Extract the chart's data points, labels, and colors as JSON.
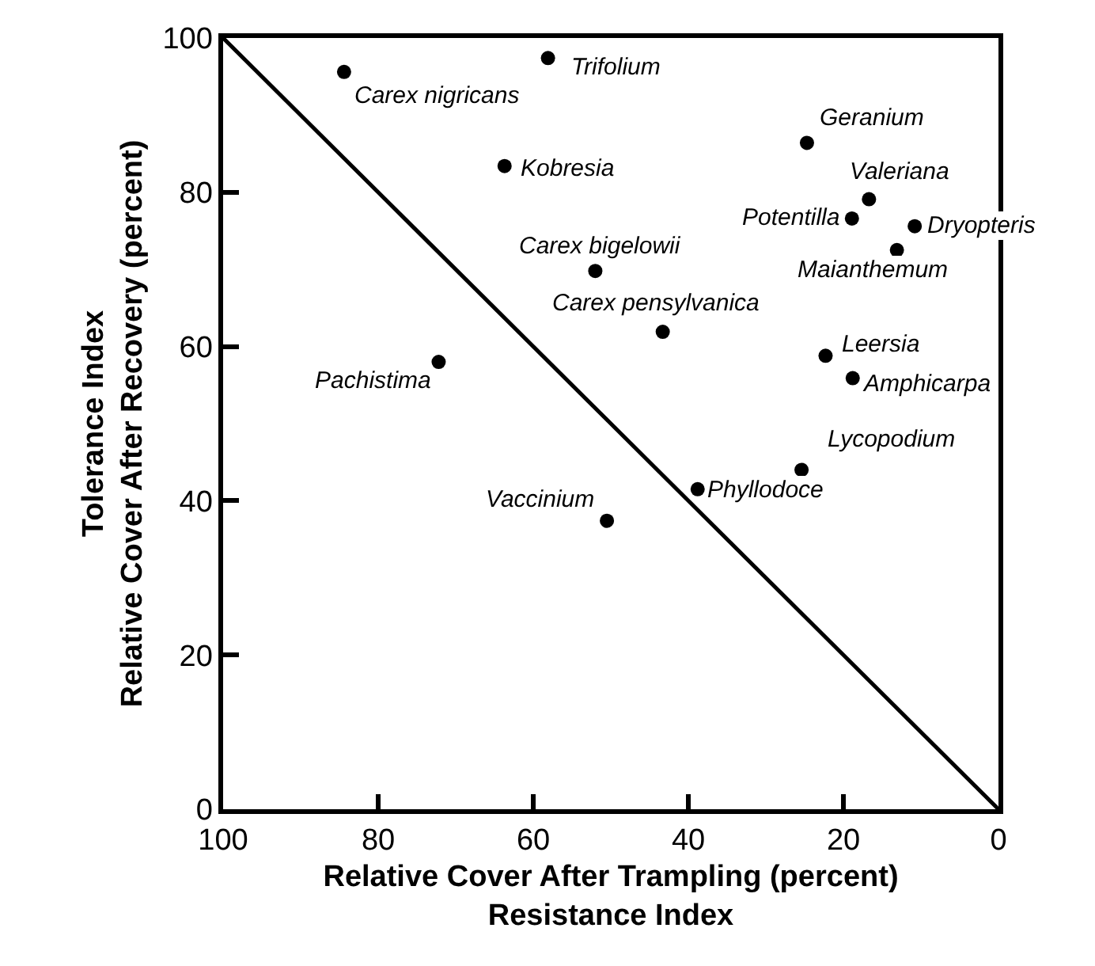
{
  "chart_data": {
    "type": "scatter",
    "xlabel": "Relative Cover After Trampling (percent)\nResistance Index",
    "ylabel": "Tolerance Index\nRelative Cover After Recovery (percent)",
    "xlim": [
      100,
      0
    ],
    "ylim": [
      0,
      100
    ],
    "xticks": [
      100,
      80,
      60,
      40,
      20,
      0
    ],
    "yticks": [
      0,
      20,
      40,
      60,
      80,
      100
    ],
    "marker": "circle",
    "series": [
      {
        "color": "#000000",
        "x": [
          84.4,
          58.1,
          63.7,
          24.7,
          16.7,
          18.9,
          10.8,
          13.1,
          52.0,
          43.3,
          22.3,
          18.8,
          72.2,
          25.4,
          38.8,
          50.5
        ],
        "values": [
          95.6,
          97.4,
          83.4,
          86.4,
          79.1,
          76.6,
          75.6,
          72.5,
          69.8,
          61.9,
          58.8,
          55.9,
          58.0,
          44.0,
          41.5,
          37.4
        ]
      },
      {
        "type": "line",
        "color": "#000000",
        "marker": "none",
        "line_style": "solid",
        "x": [
          100,
          0
        ],
        "values": [
          100,
          0
        ]
      }
    ],
    "annotations": [
      {
        "text": "Carex nigricans",
        "x": 84.4,
        "y": 95.6
      },
      {
        "text": "Trifolium",
        "x": 58.1,
        "y": 97.4
      },
      {
        "text": "Kobresia",
        "x": 63.7,
        "y": 83.4
      },
      {
        "text": "Geranium",
        "x": 24.7,
        "y": 86.4
      },
      {
        "text": "Valeriana",
        "x": 16.7,
        "y": 79.1
      },
      {
        "text": "Potentilla",
        "x": 18.9,
        "y": 76.6
      },
      {
        "text": "Dryopteris",
        "x": 10.8,
        "y": 75.6
      },
      {
        "text": "Maianthemum",
        "x": 13.1,
        "y": 72.5
      },
      {
        "text": "Carex bigelowii",
        "x": 52.0,
        "y": 69.8
      },
      {
        "text": "Carex pensylvanica",
        "x": 43.3,
        "y": 61.9
      },
      {
        "text": "Leersia",
        "x": 22.3,
        "y": 58.8
      },
      {
        "text": "Amphicarpa",
        "x": 18.8,
        "y": 55.9
      },
      {
        "text": "Pachistima",
        "x": 72.2,
        "y": 58.0
      },
      {
        "text": "Lycopodium",
        "x": 25.4,
        "y": 44.0
      },
      {
        "text": "Phyllodoce",
        "x": 38.8,
        "y": 41.5
      },
      {
        "text": "Vaccinium",
        "x": 50.5,
        "y": 37.4
      }
    ]
  }
}
